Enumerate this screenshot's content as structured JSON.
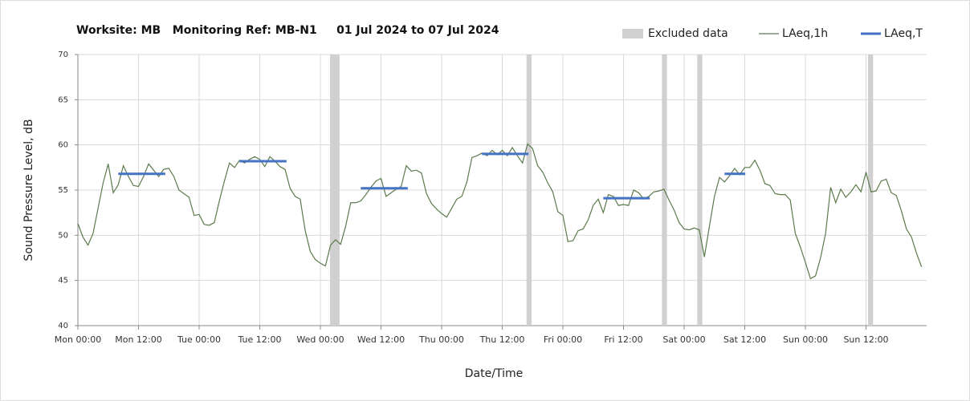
{
  "chart_data": {
    "type": "line",
    "title": "Worksite: MB   Monitoring Ref: MB-N1     01 Jul 2024 to 07 Jul 2024",
    "xlabel": "Date/Time",
    "ylabel": "Sound Pressure Level, dB",
    "xlim": [
      0,
      168
    ],
    "ylim": [
      40,
      70
    ],
    "xticks": [
      {
        "value": 0,
        "label": "Mon 00:00"
      },
      {
        "value": 12,
        "label": "Mon 12:00"
      },
      {
        "value": 24,
        "label": "Tue 00:00"
      },
      {
        "value": 36,
        "label": "Tue 12:00"
      },
      {
        "value": 48,
        "label": "Wed 00:00"
      },
      {
        "value": 60,
        "label": "Wed 12:00"
      },
      {
        "value": 72,
        "label": "Thu 00:00"
      },
      {
        "value": 84,
        "label": "Thu 12:00"
      },
      {
        "value": 96,
        "label": "Fri 00:00"
      },
      {
        "value": 108,
        "label": "Fri 12:00"
      },
      {
        "value": 120,
        "label": "Sat 00:00"
      },
      {
        "value": 132,
        "label": "Sat 12:00"
      },
      {
        "value": 144,
        "label": "Sun 00:00"
      },
      {
        "value": 156,
        "label": "Sun 12:00"
      }
    ],
    "yticks": [
      40,
      45,
      50,
      55,
      60,
      65,
      70
    ],
    "grid": true,
    "excluded": {
      "name": "Excluded data",
      "color": "#d0d0d0",
      "spans": [
        [
          49.9,
          51.8
        ],
        [
          88.8,
          89.8
        ],
        [
          115.6,
          116.6
        ],
        [
          122.6,
          123.6
        ],
        [
          156.4,
          157.4
        ]
      ]
    },
    "series": [
      {
        "name": "LAeq,1h",
        "color": "#5b7a4c",
        "x": [
          0,
          1,
          2,
          3,
          4,
          5,
          6,
          7,
          8,
          9,
          10,
          11,
          12,
          13,
          14,
          15,
          16,
          17,
          18,
          19,
          20,
          21,
          22,
          23,
          24,
          25,
          26,
          27,
          28,
          29,
          30,
          31,
          32,
          33,
          34,
          35,
          36,
          37,
          38,
          39,
          40,
          41,
          42,
          43,
          44,
          45,
          46,
          47,
          48,
          49,
          50,
          51,
          52,
          53,
          54,
          55,
          56,
          57,
          58,
          59,
          60,
          61,
          62,
          63,
          64,
          65,
          66,
          67,
          68,
          69,
          70,
          71,
          72,
          73,
          74,
          75,
          76,
          77,
          78,
          79,
          80,
          81,
          82,
          83,
          84,
          85,
          86,
          87,
          88,
          89,
          90,
          91,
          92,
          93,
          94,
          95,
          96,
          97,
          98,
          99,
          100,
          101,
          102,
          103,
          104,
          105,
          106,
          107,
          108,
          109,
          110,
          111,
          112,
          113,
          114,
          115,
          116,
          117,
          118,
          119,
          120,
          121,
          122,
          123,
          124,
          125,
          126,
          127,
          128,
          129,
          130,
          131,
          132,
          133,
          134,
          135,
          136,
          137,
          138,
          139,
          140,
          141,
          142,
          143,
          144,
          145,
          146,
          147,
          148,
          149,
          150,
          151,
          152,
          153,
          154,
          155,
          156,
          157,
          158,
          159,
          160,
          161,
          162,
          163,
          164,
          165,
          166,
          167
        ],
        "values": [
          51.3,
          49.8,
          48.9,
          50.2,
          53.0,
          55.8,
          57.9,
          54.7,
          55.6,
          57.7,
          56.5,
          55.5,
          55.4,
          56.5,
          57.9,
          57.2,
          56.5,
          57.3,
          57.4,
          56.5,
          55.0,
          54.6,
          54.2,
          52.2,
          52.3,
          51.2,
          51.1,
          51.4,
          53.8,
          56.0,
          58.0,
          57.5,
          58.3,
          58.0,
          58.4,
          58.7,
          58.4,
          57.6,
          58.7,
          58.2,
          57.6,
          57.3,
          55.2,
          54.3,
          54.0,
          50.5,
          48.2,
          47.3,
          46.9,
          46.6,
          48.9,
          49.5,
          49.0,
          51.0,
          53.6,
          53.6,
          53.8,
          54.5,
          55.3,
          56.0,
          56.3,
          54.3,
          54.7,
          55.1,
          55.4,
          57.7,
          57.1,
          57.2,
          56.9,
          54.6,
          53.5,
          52.9,
          52.4,
          52.0,
          53.0,
          54.0,
          54.3,
          55.9,
          58.6,
          58.8,
          59.1,
          58.8,
          59.4,
          58.9,
          59.4,
          58.8,
          59.7,
          58.8,
          58.0,
          60.1,
          59.6,
          57.7,
          57.0,
          55.8,
          54.8,
          52.6,
          52.2,
          49.3,
          49.4,
          50.5,
          50.7,
          51.7,
          53.3,
          54.0,
          52.5,
          54.5,
          54.3,
          53.3,
          53.4,
          53.3,
          55.0,
          54.7,
          54.0,
          54.3,
          54.8,
          54.9,
          55.1,
          53.9,
          52.8,
          51.4,
          50.7,
          50.6,
          50.8,
          50.6,
          47.6,
          51.0,
          54.3,
          56.4,
          55.9,
          56.6,
          57.4,
          56.7,
          57.5,
          57.5,
          58.3,
          57.2,
          55.7,
          55.5,
          54.6,
          54.5,
          54.5,
          53.9,
          50.2,
          48.7,
          47.0,
          45.2,
          45.5,
          47.5,
          50.2,
          55.3,
          53.6,
          55.1,
          54.2,
          54.8,
          55.6,
          54.8,
          57.0,
          54.8,
          54.9,
          56.0,
          56.2,
          54.7,
          54.4,
          52.7,
          50.7,
          49.8,
          48.0,
          46.5
        ]
      }
    ],
    "period": {
      "name": "LAeq,T",
      "color": "#4472c4",
      "segments": [
        {
          "x": [
            8,
            17.3
          ],
          "value": 56.8
        },
        {
          "x": [
            32,
            41.3
          ],
          "value": 58.2
        },
        {
          "x": [
            56,
            65.3
          ],
          "value": 55.2
        },
        {
          "x": [
            80,
            89.2
          ],
          "value": 59.0
        },
        {
          "x": [
            104,
            113.2
          ],
          "value": 54.1
        },
        {
          "x": [
            128,
            132.1
          ],
          "value": 56.8
        }
      ]
    }
  }
}
